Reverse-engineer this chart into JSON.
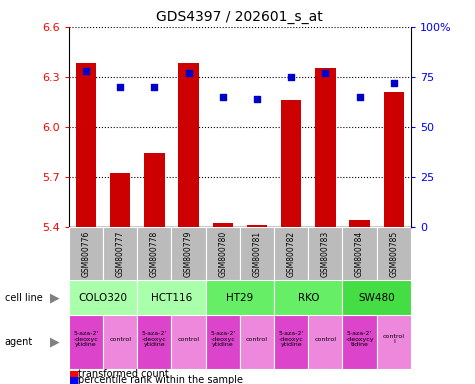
{
  "title": "GDS4397 / 202601_s_at",
  "samples": [
    "GSM800776",
    "GSM800777",
    "GSM800778",
    "GSM800779",
    "GSM800780",
    "GSM800781",
    "GSM800782",
    "GSM800783",
    "GSM800784",
    "GSM800785"
  ],
  "transformed_count": [
    6.38,
    5.72,
    5.84,
    6.38,
    5.42,
    5.41,
    6.16,
    6.35,
    5.44,
    6.21
  ],
  "percentile_rank": [
    78,
    70,
    70,
    77,
    65,
    64,
    75,
    77,
    65,
    72
  ],
  "ylim_left": [
    5.4,
    6.6
  ],
  "ylim_right": [
    0,
    100
  ],
  "yticks_left": [
    5.4,
    5.7,
    6.0,
    6.3,
    6.6
  ],
  "yticks_right": [
    0,
    25,
    50,
    75,
    100
  ],
  "ytick_labels_right": [
    "0",
    "25",
    "50",
    "75",
    "100%"
  ],
  "cell_lines": [
    {
      "name": "COLO320",
      "start": 0,
      "end": 2,
      "color": "#aaffaa"
    },
    {
      "name": "HCT116",
      "start": 2,
      "end": 4,
      "color": "#aaffaa"
    },
    {
      "name": "HT29",
      "start": 4,
      "end": 6,
      "color": "#66ee66"
    },
    {
      "name": "RKO",
      "start": 6,
      "end": 8,
      "color": "#66ee66"
    },
    {
      "name": "SW480",
      "start": 8,
      "end": 10,
      "color": "#44dd44"
    }
  ],
  "agents": [
    {
      "name": "5-aza-2'\n-deoxyc\nytidine",
      "type": "drug",
      "col": 0
    },
    {
      "name": "control",
      "type": "ctrl",
      "col": 1
    },
    {
      "name": "5-aza-2'\n-deoxyc\nytidine",
      "type": "drug",
      "col": 2
    },
    {
      "name": "control",
      "type": "ctrl",
      "col": 3
    },
    {
      "name": "5-aza-2'\n-deoxyc\nytidine",
      "type": "drug",
      "col": 4
    },
    {
      "name": "control",
      "type": "ctrl",
      "col": 5
    },
    {
      "name": "5-aza-2'\n-deoxyc\nytidine",
      "type": "drug",
      "col": 6
    },
    {
      "name": "control",
      "type": "ctrl",
      "col": 7
    },
    {
      "name": "5-aza-2'\n-deoxycy\ntidine",
      "type": "drug",
      "col": 8
    },
    {
      "name": "control\nl",
      "type": "ctrl",
      "col": 9
    }
  ],
  "bar_color": "#cc0000",
  "dot_color": "#0000cc",
  "sample_row_color": "#bbbbbb",
  "agent_row_color_drug": "#dd44cc",
  "agent_row_color_ctrl": "#ee88dd",
  "bar_width": 0.6,
  "figsize": [
    4.75,
    3.84
  ],
  "dpi": 100
}
